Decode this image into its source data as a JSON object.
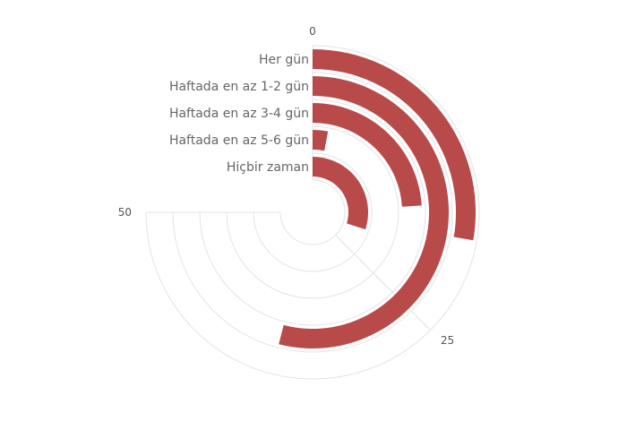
{
  "chart_data": {
    "type": "radial-bar",
    "categories": [
      "Her gün",
      "Haftada en az 1-2 gün",
      "Haftada en az 3-4 gün",
      "Haftada en az 5-6 gün",
      "Hiçbir zaman"
    ],
    "values": [
      18.5,
      36,
      16,
      2,
      20
    ],
    "angle_range": [
      0,
      50
    ],
    "angle_ticks": [
      0,
      25,
      50
    ],
    "grid": true,
    "bar_color": "#b94a4a",
    "grid_color": "#e3e3e3"
  }
}
